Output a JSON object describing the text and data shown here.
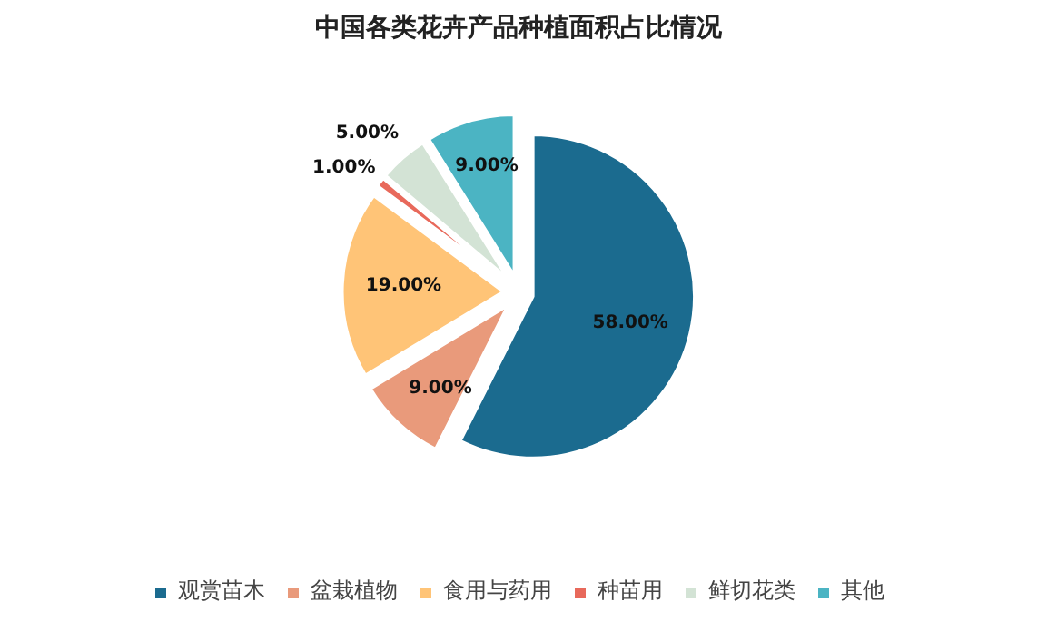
{
  "chart_data": {
    "type": "pie",
    "title": "中国各类花卉产品种植面积占比情况",
    "categories": [
      "观赏苗木",
      "盆栽植物",
      "食用与药用",
      "种苗用",
      "鲜切花类",
      "其他"
    ],
    "values": [
      58,
      9,
      19,
      1,
      5,
      9
    ],
    "colors": [
      "#1b6b8f",
      "#e99a7b",
      "#ffc477",
      "#e8695b",
      "#d3e3d5",
      "#4bb4c3"
    ],
    "value_labels": [
      "58.00%",
      "9.00%",
      "19.00%",
      "1.00%",
      "5.00%",
      "9.00%"
    ],
    "legend": "bottom"
  }
}
